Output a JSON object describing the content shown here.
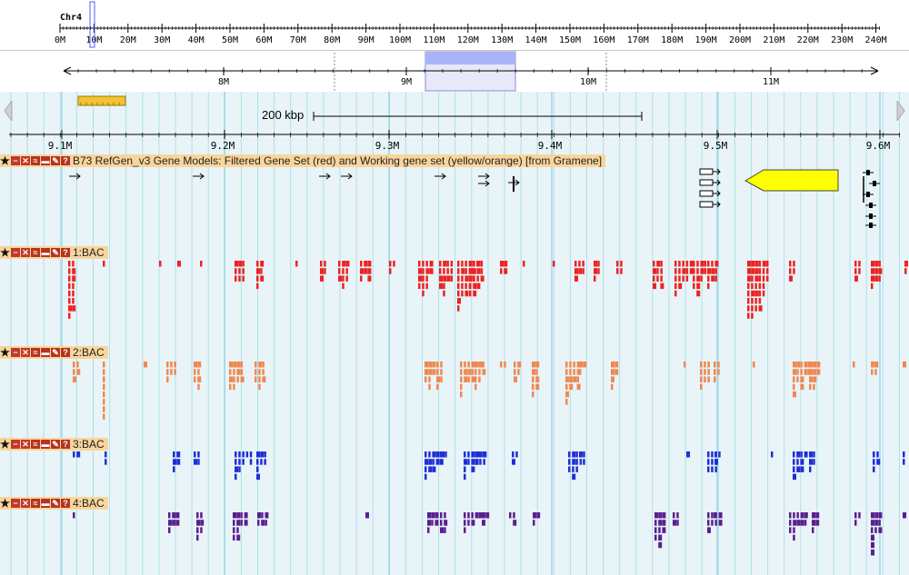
{
  "chromosome": {
    "label": "Chr4"
  },
  "overview": {
    "ticks": [
      "0M",
      "10M",
      "20M",
      "30M",
      "40M",
      "50M",
      "60M",
      "70M",
      "80M",
      "90M",
      "100M",
      "110M",
      "120M",
      "130M",
      "140M",
      "150M",
      "160M",
      "170M",
      "180M",
      "190M",
      "200M",
      "210M",
      "220M",
      "230M",
      "240M"
    ]
  },
  "region": {
    "ticks": [
      "8M",
      "9M",
      "10M",
      "11M"
    ]
  },
  "detail": {
    "scale_label": "200 kbp",
    "ticks": [
      "9.1M",
      "9.2M",
      "9.3M",
      "9.4M",
      "9.5M",
      "9.6M"
    ]
  },
  "tracks": [
    {
      "name": "gene-models",
      "label": "B73 RefGen_v3 Gene Models: Filtered Gene Set (red) and Working gene set (yellow/orange) [from Gramene]",
      "color": "#000000"
    },
    {
      "name": "bac-1",
      "label": "1:BAC",
      "color": "#ee2222"
    },
    {
      "name": "bac-2",
      "label": "2:BAC",
      "color": "#f08850"
    },
    {
      "name": "bac-3",
      "label": "3:BAC",
      "color": "#1f2fd6"
    },
    {
      "name": "bac-4",
      "label": "4:BAC",
      "color": "#5a1f8f"
    }
  ],
  "colors": {
    "highlight": "#a9b4f7",
    "yellow_block": "#f2c230",
    "gene_arrow": "#ffff00",
    "label_bg": "#f9d59b"
  },
  "icons": [
    "star-icon",
    "minus-icon",
    "close-icon",
    "rss-icon",
    "save-icon",
    "edit-icon",
    "help-icon"
  ]
}
